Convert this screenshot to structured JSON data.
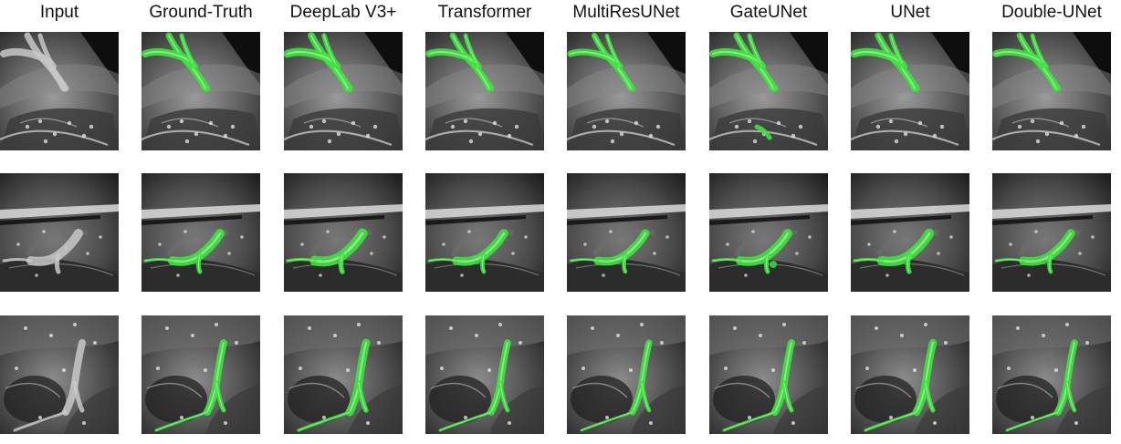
{
  "figure": {
    "columns": [
      {
        "key": "input",
        "label": "Input"
      },
      {
        "key": "ground-truth",
        "label": "Ground-Truth"
      },
      {
        "key": "deeplab-v3plus",
        "label": "DeepLab V3+"
      },
      {
        "key": "transformer",
        "label": "Transformer"
      },
      {
        "key": "multiresunet",
        "label": "MultiResUNet"
      },
      {
        "key": "gateunet",
        "label": "GateUNet"
      },
      {
        "key": "unet",
        "label": "UNet"
      },
      {
        "key": "double-unet",
        "label": "Double-UNet"
      }
    ],
    "overlay_color": "#3ee23e",
    "background_tone": "grayscale surgical frames",
    "rows": 3
  }
}
